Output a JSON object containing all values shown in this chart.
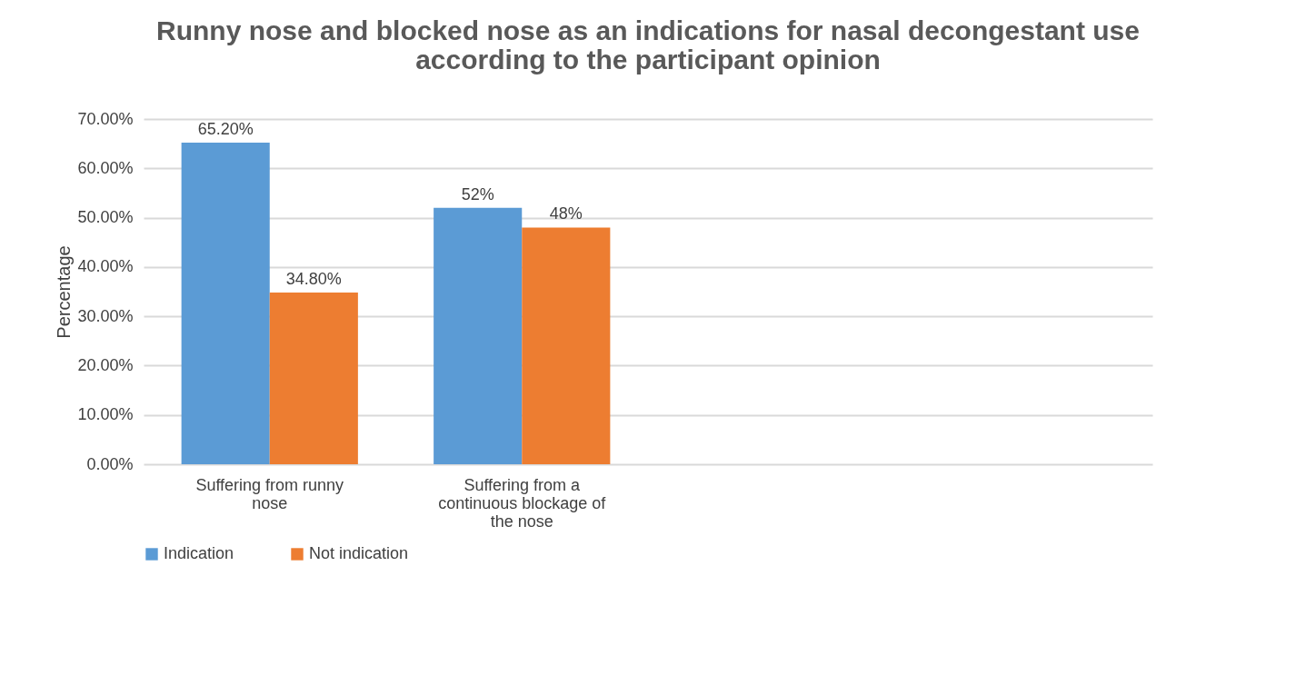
{
  "chart_data": {
    "type": "bar",
    "title": "Runny nose and blocked nose as an indications for nasal decongestant use according to the participant opinion",
    "ylabel": "Percentage",
    "categories": [
      "Suffering from runny nose",
      "Suffering from a continuous blockage of the nose",
      null,
      null
    ],
    "series": [
      {
        "name": "Indication",
        "color": "#5b9bd5",
        "values": [
          65.2,
          52,
          null,
          null
        ],
        "value_labels": [
          "65.20%",
          "52%",
          null,
          null
        ]
      },
      {
        "name": "Not indication",
        "color": "#ed7d31",
        "values": [
          34.8,
          48,
          null,
          null
        ],
        "value_labels": [
          "34.80%",
          "48%",
          null,
          null
        ]
      }
    ],
    "ylim": [
      0,
      70
    ],
    "yticks": [
      {
        "value": 0,
        "label": "0.00%"
      },
      {
        "value": 10,
        "label": "10.00%"
      },
      {
        "value": 20,
        "label": "20.00%"
      },
      {
        "value": 30,
        "label": "30.00%"
      },
      {
        "value": 40,
        "label": "40.00%"
      },
      {
        "value": 50,
        "label": "50.00%"
      },
      {
        "value": 60,
        "label": "60.00%"
      },
      {
        "value": 70,
        "label": "70.00%"
      }
    ],
    "grid": true,
    "legend": "bottom"
  }
}
